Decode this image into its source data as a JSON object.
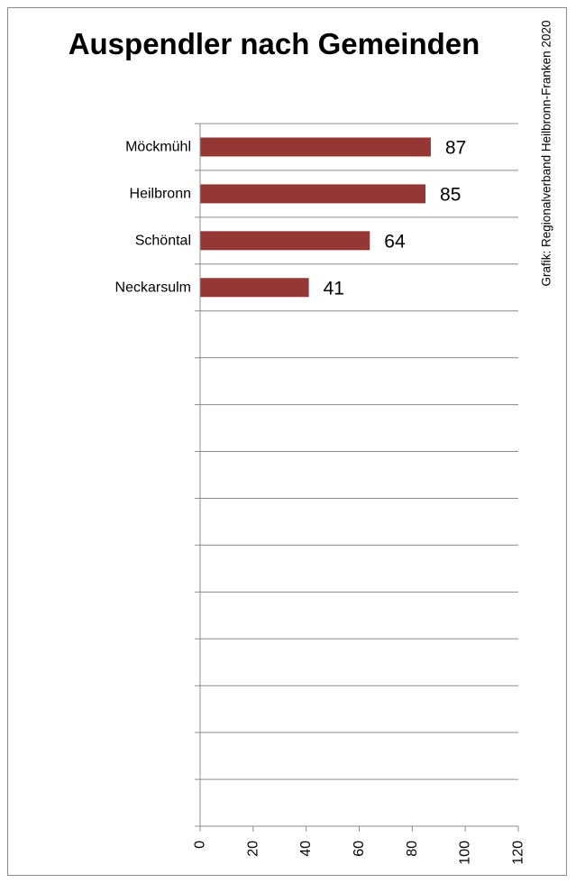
{
  "chart_data": {
    "type": "bar",
    "orientation": "horizontal",
    "title": "Auspendler nach Gemeinden",
    "source_note": "Grafik: Regionalverband Heilbronn-Franken 2020",
    "categories": [
      "Möckmühl",
      "Heilbronn",
      "Schöntal",
      "Neckarsulm"
    ],
    "values": [
      87,
      85,
      64,
      41
    ],
    "data_labels": [
      "87",
      "85",
      "64",
      "41"
    ],
    "xlabel": "",
    "ylabel": "",
    "xlim": [
      0,
      120
    ],
    "x_ticks": [
      0,
      20,
      40,
      60,
      80,
      100,
      120
    ],
    "x_tick_labels": [
      "0",
      "20",
      "40",
      "60",
      "80",
      "100",
      "120"
    ],
    "category_slots": 15,
    "grid": "horizontal category gridlines",
    "legend": "none",
    "bar_color": "#953735"
  }
}
